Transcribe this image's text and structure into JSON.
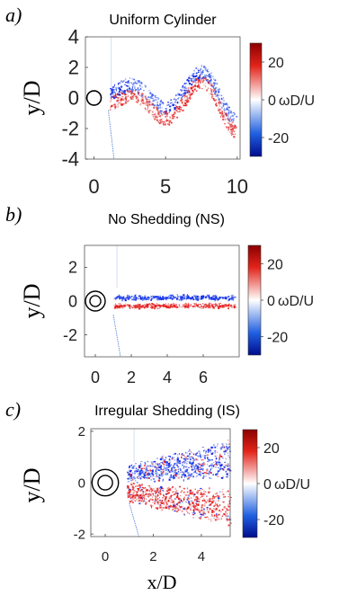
{
  "figure": {
    "panels": [
      {
        "panel_label": "a)",
        "title": "Uniform Cylinder",
        "ylabel": "y/D",
        "xlabel": "",
        "cylinder": "single circle",
        "colorbar": {
          "ticks": [
            "20",
            "0",
            "-20"
          ],
          "label": "ωD/U",
          "cmap": "blue-white-red"
        }
      },
      {
        "panel_label": "b)",
        "title": "No Shedding (NS)",
        "ylabel": "y/D",
        "xlabel": "",
        "cylinder": "double circle",
        "colorbar": {
          "ticks": [
            "20",
            "0",
            "-20"
          ],
          "label": "ωD/U",
          "cmap": "blue-white-red"
        }
      },
      {
        "panel_label": "c)",
        "title": "Irregular Shedding (IS)",
        "ylabel": "y/D",
        "xlabel": "x/D",
        "cylinder": "double circle",
        "colorbar": {
          "ticks": [
            "20",
            "0",
            "-20"
          ],
          "label": "ωD/U",
          "cmap": "blue-white-red"
        }
      }
    ]
  },
  "chart_data": [
    {
      "type": "heatmap",
      "title": "Uniform Cylinder",
      "xlabel": "",
      "ylabel": "y/D",
      "xlim": [
        -0.6,
        10.2
      ],
      "ylim": [
        -4,
        4
      ],
      "xticks": [
        0,
        5,
        10
      ],
      "yticks": [
        -4,
        -2,
        0,
        2,
        4
      ],
      "colorbar": {
        "label": "ωD/U",
        "ticks": [
          -20,
          0,
          20
        ],
        "range": [
          -30,
          30
        ]
      },
      "wake_pattern": "Karman vortex street"
    },
    {
      "type": "heatmap",
      "title": "No Shedding (NS)",
      "xlabel": "",
      "ylabel": "y/D",
      "xlim": [
        -0.6,
        8
      ],
      "ylim": [
        -3.3,
        3.3
      ],
      "xticks": [
        0,
        2,
        4,
        6
      ],
      "yticks": [
        -2,
        0,
        2
      ],
      "colorbar": {
        "label": "ωD/U",
        "ticks": [
          -20,
          0,
          20
        ],
        "range": [
          -30,
          30
        ]
      },
      "wake_pattern": "thin shear layers"
    },
    {
      "type": "heatmap",
      "title": "Irregular Shedding (IS)",
      "xlabel": "x/D",
      "ylabel": "y/D",
      "xlim": [
        -0.6,
        5.2
      ],
      "ylim": [
        -2.1,
        2.1
      ],
      "xticks": [
        0,
        2,
        4
      ],
      "yticks": [
        -2,
        0,
        2
      ],
      "colorbar": {
        "label": "ωD/U",
        "ticks": [
          -20,
          0,
          20
        ],
        "range": [
          -30,
          30
        ]
      },
      "wake_pattern": "broad irregular wake"
    }
  ]
}
